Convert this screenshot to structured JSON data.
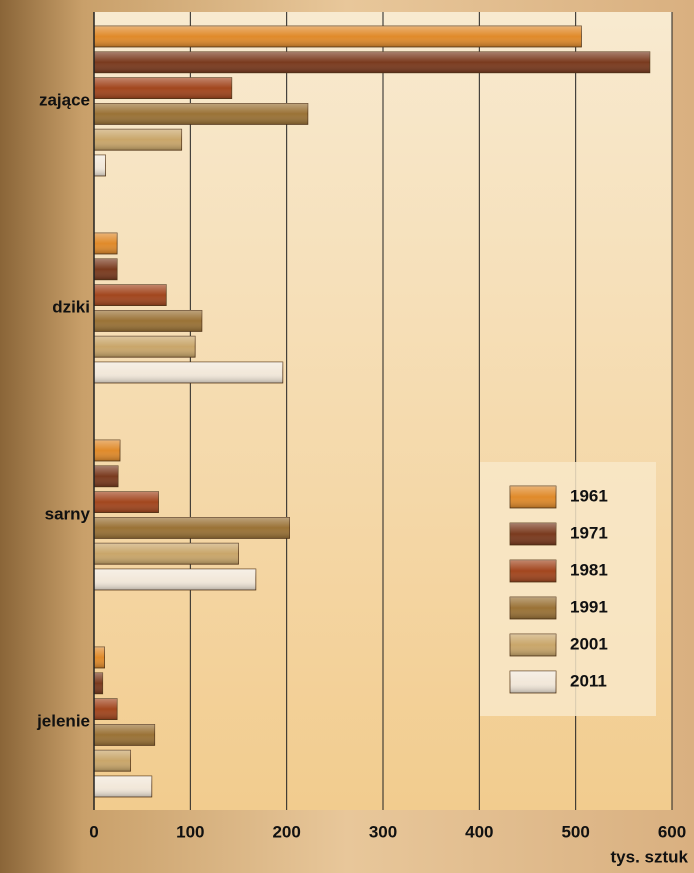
{
  "chart_data": {
    "type": "bar",
    "orientation": "horizontal",
    "categories": [
      "zające",
      "dziki",
      "sarny",
      "jelenie"
    ],
    "series": [
      {
        "name": "1961",
        "color": "#e08a2a",
        "values": [
          506,
          24,
          27,
          11
        ]
      },
      {
        "name": "1971",
        "color": "#7a3a1e",
        "values": [
          577,
          24,
          25,
          9
        ]
      },
      {
        "name": "1981",
        "color": "#a2461e",
        "values": [
          143,
          75,
          67,
          24
        ]
      },
      {
        "name": "1991",
        "color": "#9a7236",
        "values": [
          222,
          112,
          203,
          63
        ]
      },
      {
        "name": "2001",
        "color": "#c9a66a",
        "values": [
          91,
          105,
          150,
          38
        ]
      },
      {
        "name": "2011",
        "color": "#f2e8da",
        "values": [
          12,
          196,
          168,
          60
        ]
      }
    ],
    "xlabel": "tys. sztuk",
    "xlim": [
      0,
      600
    ],
    "xticks": [
      0,
      100,
      200,
      300,
      400,
      500,
      600
    ],
    "grid": true,
    "legend": "lower right"
  }
}
